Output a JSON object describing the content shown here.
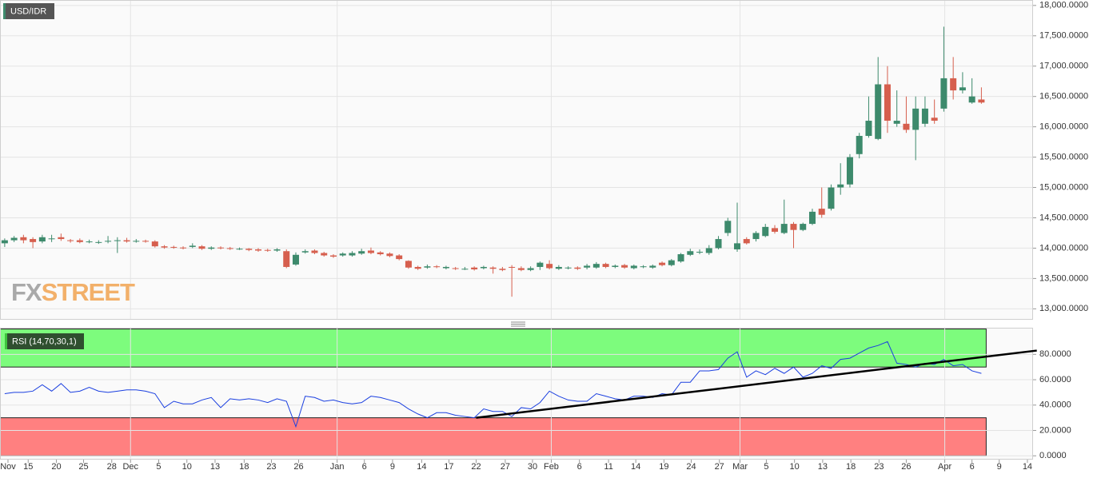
{
  "chart_data": [
    {
      "type": "candlestick",
      "title": "USD/IDR",
      "watermark": [
        "FX",
        "STREET"
      ],
      "up_color": "#3d8a6c",
      "down_color": "#d65f4e",
      "grid": true,
      "xlim": [
        -0.5,
        109.5
      ],
      "ylim": [
        12820,
        18090
      ],
      "yticks": [
        {
          "value": 13000,
          "label": "13,000.0000"
        },
        {
          "value": 13500,
          "label": "13,500.0000"
        },
        {
          "value": 14000,
          "label": "14,000.0000"
        },
        {
          "value": 14500,
          "label": "14,500.0000"
        },
        {
          "value": 15000,
          "label": "15,000.0000"
        },
        {
          "value": 15500,
          "label": "15,500.0000"
        },
        {
          "value": 16000,
          "label": "16,000.0000"
        },
        {
          "value": 16500,
          "label": "16,500.0000"
        },
        {
          "value": 17000,
          "label": "17,000.0000"
        },
        {
          "value": 17500,
          "label": "17,500.0000"
        },
        {
          "value": 18000,
          "label": "18,000.0000"
        }
      ],
      "xgrid": [
        13.4,
        35.4,
        58.2,
        78.3,
        100.1
      ],
      "x": [
        0,
        1,
        2,
        3,
        4,
        5,
        6,
        7,
        8,
        9,
        10,
        11,
        12,
        13,
        14,
        15,
        16,
        17,
        18,
        19,
        20,
        21,
        22,
        23,
        24,
        25,
        26,
        27,
        28,
        29,
        30,
        31,
        32,
        33,
        34,
        35,
        36,
        37,
        38,
        39,
        40,
        41,
        42,
        43,
        44,
        45,
        46,
        47,
        48,
        49,
        50,
        51,
        52,
        53,
        54,
        55,
        56,
        57,
        58,
        59,
        60,
        61,
        62,
        63,
        64,
        65,
        66,
        67,
        68,
        69,
        70,
        71,
        72,
        73,
        74,
        75,
        76,
        77,
        78,
        79,
        80,
        81,
        82,
        83,
        84,
        85,
        86,
        87,
        88,
        89,
        90,
        91,
        92,
        93,
        94,
        95,
        96,
        97,
        98,
        99,
        100,
        101,
        102,
        103,
        104
      ],
      "open": [
        14080,
        14130,
        14180,
        14150,
        14110,
        14150,
        14180,
        14130,
        14130,
        14100,
        14090,
        14110,
        14130,
        14130,
        14110,
        14120,
        14110,
        14030,
        14020,
        14010,
        14020,
        14030,
        13990,
        14010,
        14000,
        13990,
        13990,
        13980,
        13970,
        13960,
        13950,
        13730,
        13930,
        13960,
        13920,
        13880,
        13880,
        13880,
        13910,
        13960,
        13930,
        13910,
        13880,
        13790,
        13690,
        13680,
        13700,
        13670,
        13670,
        13660,
        13680,
        13670,
        13680,
        13660,
        13690,
        13670,
        13640,
        13690,
        13740,
        13660,
        13670,
        13680,
        13680,
        13680,
        13740,
        13690,
        13720,
        13670,
        13700,
        13680,
        13760,
        13720,
        13780,
        13890,
        13930,
        13920,
        14000,
        14250,
        13980,
        14150,
        14150,
        14200,
        14330,
        14250,
        14400,
        14300,
        14400,
        14650,
        14650,
        15000,
        15050,
        15550,
        15850,
        15800,
        16700,
        16050,
        16050,
        15950,
        16050,
        16150,
        16300,
        16800,
        16600,
        16400,
        16450
      ],
      "high": [
        14160,
        14200,
        14220,
        14180,
        14220,
        14220,
        14240,
        14150,
        14160,
        14140,
        14130,
        14200,
        14180,
        14170,
        14150,
        14140,
        14130,
        14050,
        14040,
        14030,
        14080,
        14050,
        14030,
        14030,
        14020,
        14010,
        14000,
        14000,
        13990,
        14000,
        13980,
        13930,
        13980,
        13980,
        13940,
        13900,
        13930,
        13950,
        13990,
        14010,
        13950,
        13930,
        13900,
        13800,
        13710,
        13730,
        13720,
        13710,
        13690,
        13690,
        13700,
        13710,
        13700,
        13690,
        13720,
        13700,
        13700,
        13780,
        13800,
        13720,
        13700,
        13700,
        13740,
        13770,
        13760,
        13730,
        13740,
        13730,
        13720,
        13730,
        13780,
        13820,
        13920,
        13990,
        13980,
        14050,
        14200,
        14500,
        14750,
        14180,
        14280,
        14400,
        14380,
        14800,
        14430,
        14420,
        14650,
        15000,
        15050,
        15400,
        15550,
        15900,
        16500,
        17150,
        17000,
        16600,
        16500,
        16500,
        16500,
        16450,
        17650,
        17150,
        16900,
        16800,
        16650
      ],
      "low": [
        14020,
        14100,
        14080,
        14000,
        14080,
        14100,
        14120,
        14090,
        14080,
        14080,
        14070,
        14080,
        13920,
        14090,
        14090,
        14090,
        14010,
        13990,
        13990,
        13980,
        14000,
        13970,
        13970,
        13980,
        13970,
        13970,
        13950,
        13940,
        13940,
        13940,
        13670,
        13710,
        13910,
        13900,
        13860,
        13840,
        13860,
        13860,
        13890,
        13900,
        13880,
        13850,
        13800,
        13660,
        13640,
        13660,
        13670,
        13650,
        13640,
        13640,
        13630,
        13650,
        13580,
        13620,
        13200,
        13620,
        13620,
        13640,
        13650,
        13640,
        13650,
        13640,
        13650,
        13660,
        13670,
        13670,
        13660,
        13650,
        13670,
        13660,
        13700,
        13700,
        13760,
        13870,
        13900,
        13890,
        13980,
        14200,
        13940,
        14060,
        14110,
        14180,
        14240,
        14230,
        14000,
        14280,
        14380,
        14500,
        14620,
        14880,
        15000,
        15480,
        15820,
        15780,
        15900,
        16000,
        15900,
        15450,
        16000,
        16050,
        16250,
        16450,
        16550,
        16380,
        16380
      ],
      "close": [
        14130,
        14170,
        14130,
        14100,
        14180,
        14160,
        14150,
        14120,
        14100,
        14110,
        14100,
        14120,
        14130,
        14110,
        14120,
        14110,
        14030,
        14010,
        14010,
        14000,
        14040,
        13990,
        14010,
        14000,
        13990,
        13990,
        13970,
        13960,
        13960,
        13980,
        13690,
        13890,
        13950,
        13920,
        13880,
        13860,
        13910,
        13920,
        13950,
        13920,
        13900,
        13870,
        13820,
        13680,
        13660,
        13700,
        13690,
        13690,
        13660,
        13660,
        13650,
        13690,
        13660,
        13640,
        13680,
        13640,
        13670,
        13760,
        13670,
        13690,
        13680,
        13660,
        13710,
        13740,
        13690,
        13710,
        13680,
        13710,
        13700,
        13710,
        13720,
        13800,
        13900,
        13950,
        13940,
        14000,
        14150,
        14450,
        14080,
        14080,
        14250,
        14350,
        14270,
        14400,
        14300,
        14400,
        14600,
        14550,
        15000,
        15050,
        15500,
        15850,
        16100,
        16700,
        16100,
        16100,
        15950,
        16300,
        16300,
        16100,
        16800,
        16600,
        16650,
        16500,
        16400
      ]
    },
    {
      "type": "line",
      "title": "RSI (14,70,30,1)",
      "color": "#1a3fe0",
      "grid": true,
      "xlim": [
        -0.5,
        109.5
      ],
      "ylim": [
        -3,
        101
      ],
      "yticks": [
        {
          "value": 0,
          "label": "0.0000"
        },
        {
          "value": 20,
          "label": "20.0000"
        },
        {
          "value": 40,
          "label": "40.0000"
        },
        {
          "value": 60,
          "label": "60.0000"
        },
        {
          "value": 80,
          "label": "80.0000"
        }
      ],
      "xgrid": [
        13.4,
        35.4,
        58.2,
        78.3,
        100.1
      ],
      "zones": [
        {
          "from": 70,
          "to": 100,
          "color": "#7dfc7d"
        },
        {
          "from": 0,
          "to": 30,
          "color": "#ff8080"
        }
      ],
      "trendline": {
        "x": [
          50.2,
          109.9
        ],
        "values": [
          30,
          83
        ],
        "color": "#000000"
      },
      "xticks": [
        {
          "value": 0.35,
          "label": "Nov"
        },
        {
          "value": 2.5,
          "label": "15"
        },
        {
          "value": 5.5,
          "label": "20"
        },
        {
          "value": 8.4,
          "label": "25"
        },
        {
          "value": 11.4,
          "label": "28"
        },
        {
          "value": 13.4,
          "label": "Dec"
        },
        {
          "value": 16.4,
          "label": "5"
        },
        {
          "value": 19.4,
          "label": "10"
        },
        {
          "value": 22.4,
          "label": "13"
        },
        {
          "value": 25.5,
          "label": "18"
        },
        {
          "value": 28.4,
          "label": "23"
        },
        {
          "value": 31.3,
          "label": "26"
        },
        {
          "value": 35.4,
          "label": "Jan"
        },
        {
          "value": 38.3,
          "label": "6"
        },
        {
          "value": 41.3,
          "label": "9"
        },
        {
          "value": 44.4,
          "label": "14"
        },
        {
          "value": 47.3,
          "label": "17"
        },
        {
          "value": 50.2,
          "label": "22"
        },
        {
          "value": 53.3,
          "label": "27"
        },
        {
          "value": 56.2,
          "label": "30"
        },
        {
          "value": 58.2,
          "label": "Feb"
        },
        {
          "value": 61.2,
          "label": "6"
        },
        {
          "value": 64.3,
          "label": "11"
        },
        {
          "value": 67.2,
          "label": "14"
        },
        {
          "value": 70.2,
          "label": "19"
        },
        {
          "value": 73.1,
          "label": "24"
        },
        {
          "value": 76.1,
          "label": "27"
        },
        {
          "value": 78.3,
          "label": "Mar"
        },
        {
          "value": 81.1,
          "label": "5"
        },
        {
          "value": 84.1,
          "label": "10"
        },
        {
          "value": 87.1,
          "label": "13"
        },
        {
          "value": 90.1,
          "label": "18"
        },
        {
          "value": 93.1,
          "label": "23"
        },
        {
          "value": 96,
          "label": "26"
        },
        {
          "value": 100.1,
          "label": "Apr"
        },
        {
          "value": 103,
          "label": "6"
        },
        {
          "value": 105.9,
          "label": "9"
        },
        {
          "value": 108.9,
          "label": "14"
        }
      ],
      "x": [
        0,
        1,
        2,
        3,
        4,
        5,
        6,
        7,
        8,
        9,
        10,
        11,
        12,
        13,
        14,
        15,
        16,
        17,
        18,
        19,
        20,
        21,
        22,
        23,
        24,
        25,
        26,
        27,
        28,
        29,
        30,
        31,
        32,
        33,
        34,
        35,
        36,
        37,
        38,
        39,
        40,
        41,
        42,
        43,
        44,
        45,
        46,
        47,
        48,
        49,
        50,
        51,
        52,
        53,
        54,
        55,
        56,
        57,
        58,
        59,
        60,
        61,
        62,
        63,
        64,
        65,
        66,
        67,
        68,
        69,
        70,
        71,
        72,
        73,
        74,
        75,
        76,
        77,
        78,
        79,
        80,
        81,
        82,
        83,
        84,
        85,
        86,
        87,
        88,
        89,
        90,
        91,
        92,
        93,
        94,
        95,
        96,
        97,
        98,
        99,
        100,
        101,
        102,
        103,
        104
      ],
      "values": [
        49,
        50,
        50,
        51,
        56,
        51,
        57,
        50,
        51,
        54,
        51,
        50,
        51,
        52,
        52,
        51,
        49,
        38,
        43,
        41,
        41,
        44,
        46,
        38,
        45,
        44,
        45,
        44,
        42,
        45,
        43,
        23,
        47,
        46,
        43,
        44,
        42,
        41,
        42,
        47,
        46,
        44,
        42,
        37,
        33,
        30,
        34,
        34,
        32,
        31,
        30,
        37,
        35,
        35,
        31,
        38,
        37,
        42,
        51,
        47,
        44,
        43,
        43,
        49,
        47,
        45,
        44,
        47,
        47,
        46,
        49,
        48,
        58,
        58,
        67,
        67,
        68,
        77,
        82,
        62,
        67,
        64,
        69,
        65,
        70,
        62,
        65,
        71,
        69,
        76,
        77,
        81,
        85,
        87,
        90,
        73,
        72,
        70,
        73,
        72,
        76,
        71,
        72,
        67,
        65
      ]
    }
  ]
}
